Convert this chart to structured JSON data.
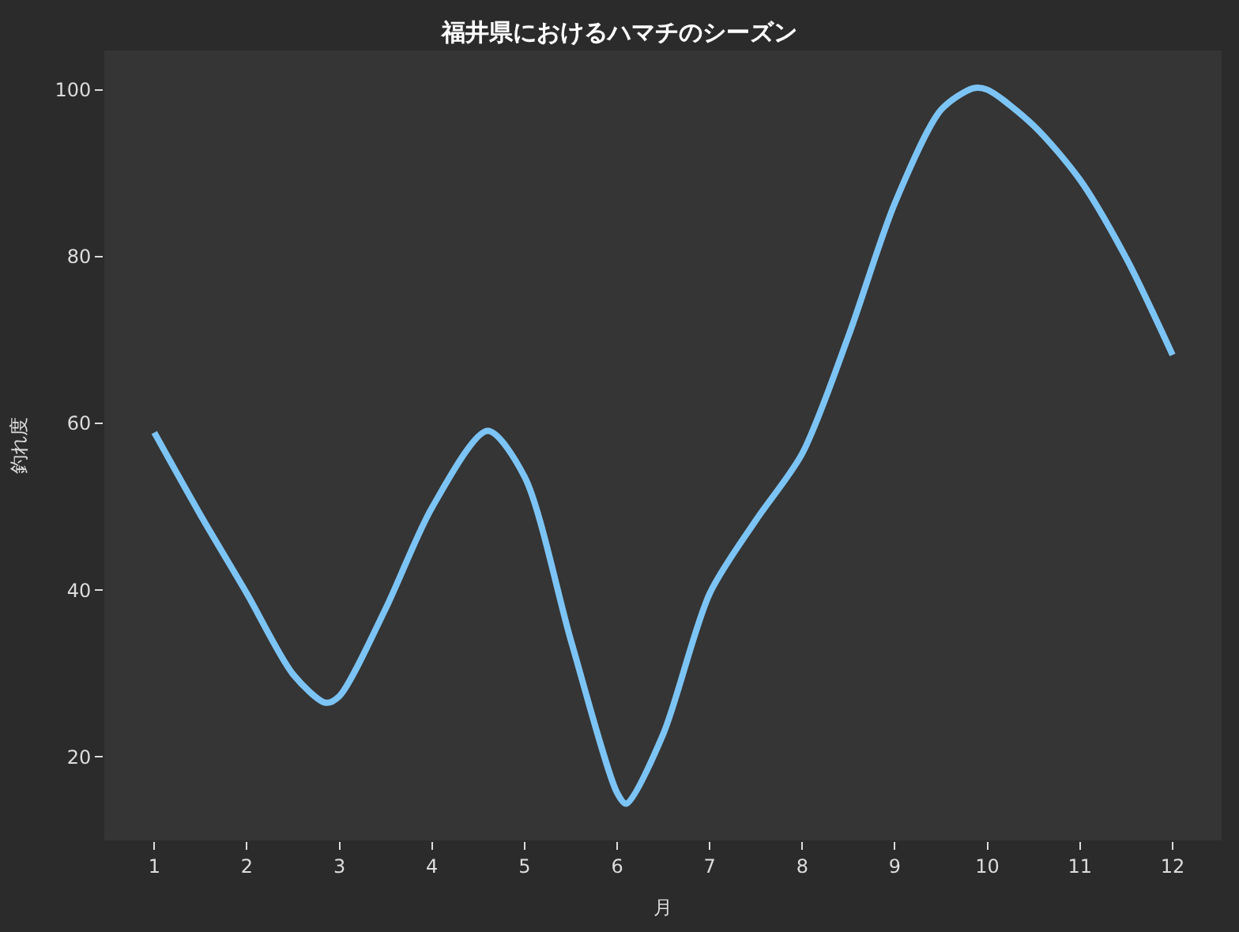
{
  "chart_data": {
    "type": "line",
    "title": "福井県におけるハマチのシーズン",
    "xlabel": "月",
    "ylabel": "釣れ度",
    "x": [
      1,
      1.5,
      2,
      2.5,
      2.85,
      3,
      3.5,
      4,
      4.6,
      5,
      5.5,
      6,
      6.1,
      6.5,
      7,
      7.5,
      8,
      8.5,
      9,
      9.5,
      9.85,
      10,
      10.5,
      11,
      11.5,
      12
    ],
    "series": [
      {
        "color": "#7cc4f5",
        "values": [
          58.9,
          49,
          39.6,
          29.9,
          26.5,
          27.3,
          37.8,
          49.9,
          59.1,
          53.6,
          34,
          15.7,
          14.4,
          22.8,
          39.6,
          48.4,
          56.4,
          70.5,
          86.4,
          97.6,
          100.2,
          100,
          95.7,
          89.2,
          79.8,
          68.2
        ]
      }
    ],
    "xlim": [
      0.46,
      12.53
    ],
    "xticks": [
      1,
      2,
      3,
      4,
      5,
      6,
      7,
      8,
      9,
      10,
      11,
      12
    ],
    "ylim": [
      10,
      104.7
    ],
    "yticks": [
      20,
      40,
      60,
      80,
      100
    ],
    "grid": false,
    "marker": "none",
    "line_style": "solid"
  }
}
